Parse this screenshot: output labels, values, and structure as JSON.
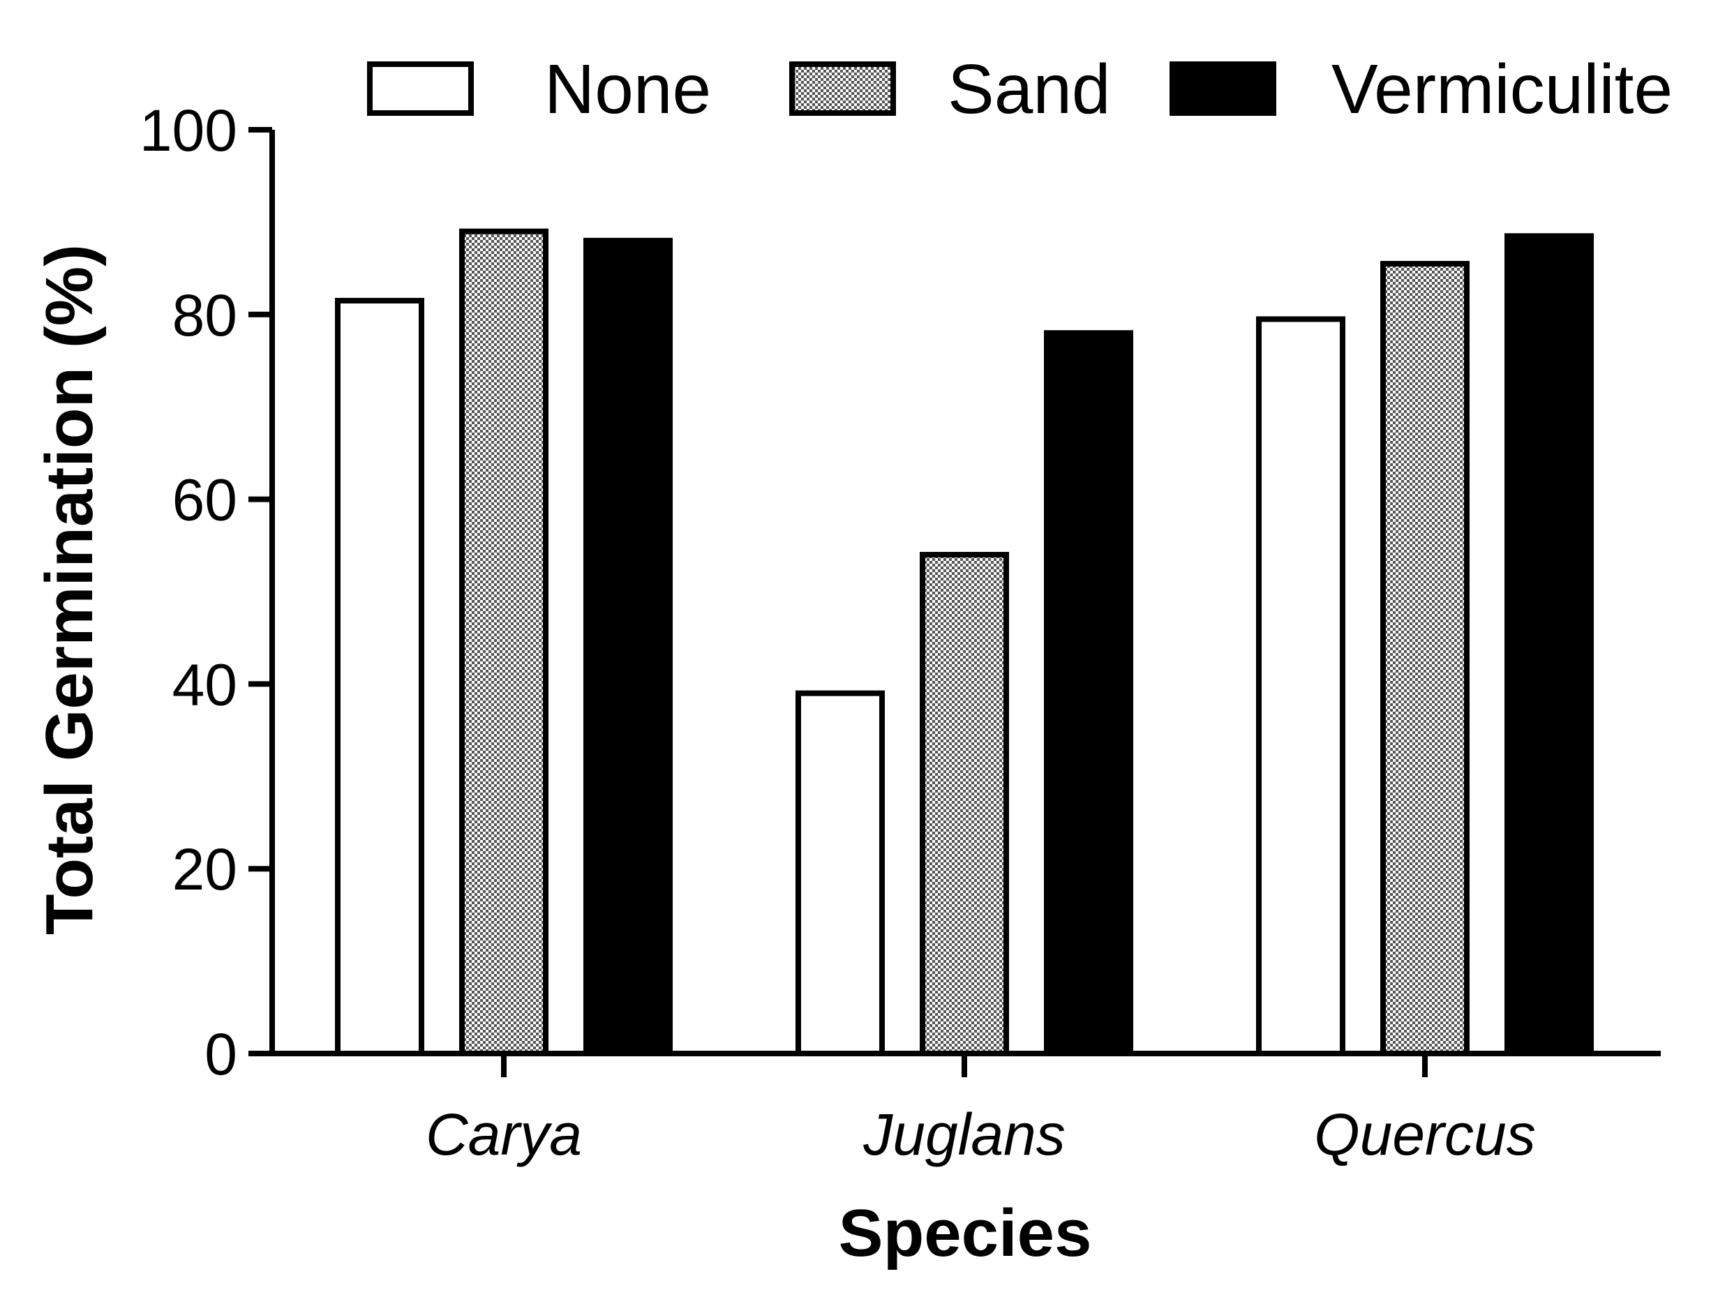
{
  "chart_data": {
    "type": "bar",
    "title": "",
    "xlabel": "Species",
    "ylabel": "Total Germination (%)",
    "ylim": [
      0,
      100
    ],
    "yticks": [
      0,
      20,
      40,
      60,
      80,
      100
    ],
    "categories": [
      "Carya",
      "Juglans",
      "Quercus"
    ],
    "series": [
      {
        "name": "None",
        "fill": "white",
        "values": [
          81.5,
          39,
          79.5
        ]
      },
      {
        "name": "Sand",
        "fill": "checkered",
        "values": [
          89,
          54,
          85.5
        ]
      },
      {
        "name": "Vermiculite",
        "fill": "black",
        "values": [
          88,
          78,
          88.5
        ]
      }
    ],
    "legend_position": "top"
  },
  "colors": {
    "axis": "#000000",
    "none_fill": "#ffffff",
    "vermiculite_fill": "#000000"
  }
}
